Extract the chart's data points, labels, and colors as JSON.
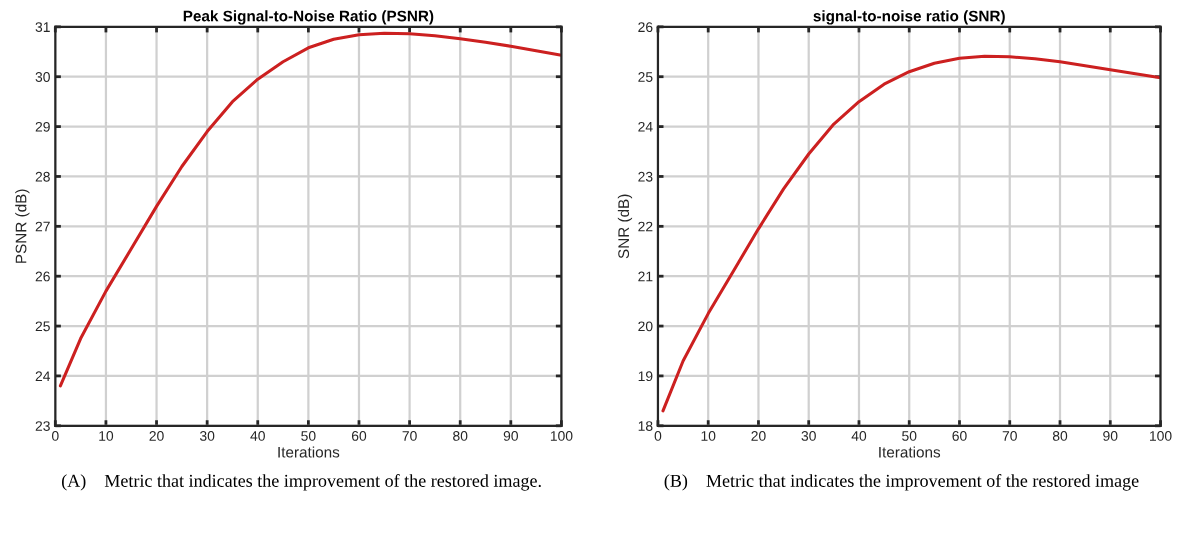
{
  "chart_data": [
    {
      "type": "line",
      "title": "Peak Signal-to-Noise Ratio (PSNR)",
      "xlabel": "Iterations",
      "ylabel": "PSNR (dB)",
      "x": [
        1,
        5,
        10,
        15,
        20,
        25,
        30,
        35,
        40,
        45,
        50,
        55,
        60,
        65,
        70,
        75,
        80,
        85,
        90,
        95,
        100
      ],
      "series": [
        {
          "color": "#cc2020",
          "values": [
            23.8,
            24.75,
            25.7,
            26.55,
            27.4,
            28.2,
            28.9,
            29.5,
            29.95,
            30.3,
            30.58,
            30.75,
            30.84,
            30.87,
            30.86,
            30.82,
            30.76,
            30.69,
            30.61,
            30.52,
            30.43
          ]
        }
      ],
      "xlim": [
        0,
        100
      ],
      "xticks": [
        0,
        10,
        20,
        30,
        40,
        50,
        60,
        70,
        80,
        90,
        100
      ],
      "ylim": [
        23,
        31
      ],
      "yticks": [
        23,
        24,
        25,
        26,
        27,
        28,
        29,
        30,
        31
      ],
      "grid": true,
      "annotations": [
        "(A)    Metric that indicates the improvement of the restored image."
      ]
    },
    {
      "type": "line",
      "title": "signal-to-noise ratio (SNR)",
      "xlabel": "Iterations",
      "ylabel": "SNR (dB)",
      "x": [
        1,
        5,
        10,
        15,
        20,
        25,
        30,
        35,
        40,
        45,
        50,
        55,
        60,
        65,
        70,
        75,
        80,
        85,
        90,
        95,
        100
      ],
      "series": [
        {
          "color": "#cc2020",
          "values": [
            18.3,
            19.3,
            20.25,
            21.1,
            21.95,
            22.75,
            23.45,
            24.05,
            24.5,
            24.85,
            25.1,
            25.27,
            25.37,
            25.41,
            25.4,
            25.36,
            25.3,
            25.22,
            25.14,
            25.06,
            24.98
          ]
        }
      ],
      "xlim": [
        0,
        100
      ],
      "xticks": [
        0,
        10,
        20,
        30,
        40,
        50,
        60,
        70,
        80,
        90,
        100
      ],
      "ylim": [
        18,
        26
      ],
      "yticks": [
        18,
        19,
        20,
        21,
        22,
        23,
        24,
        25,
        26
      ],
      "grid": true,
      "annotations": [
        "(B)    Metric that indicates the improvement of the restored image"
      ]
    }
  ]
}
